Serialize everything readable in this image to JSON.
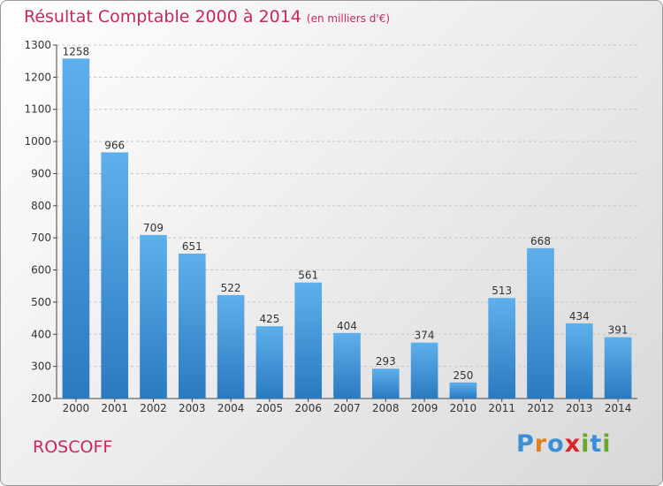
{
  "header": {
    "title": "Résultat Comptable 2000 à 2014",
    "subtitle": "(en milliers d'€)"
  },
  "footer": {
    "city": "ROSCOFF",
    "logo_letters": [
      "P",
      "r",
      "o",
      "x",
      "i",
      "t",
      "i"
    ],
    "logo_colors": [
      "#3a8fd6",
      "#e0801c",
      "#3a8fd6",
      "#d62828",
      "#6aa829",
      "#3a8fd6",
      "#6aa829"
    ]
  },
  "chart_data": {
    "type": "bar",
    "categories": [
      "2000",
      "2001",
      "2002",
      "2003",
      "2004",
      "2005",
      "2006",
      "2007",
      "2008",
      "2009",
      "2010",
      "2011",
      "2012",
      "2013",
      "2014"
    ],
    "values": [
      1258,
      966,
      709,
      651,
      522,
      425,
      561,
      404,
      293,
      374,
      250,
      513,
      668,
      434,
      391
    ],
    "ylim": [
      200,
      1300
    ],
    "yticks": [
      200,
      300,
      400,
      500,
      600,
      700,
      800,
      900,
      1000,
      1100,
      1200,
      1300
    ],
    "grid": true,
    "bar_color_top": "#5eb0ec",
    "bar_color_bottom": "#2a7ac0"
  }
}
